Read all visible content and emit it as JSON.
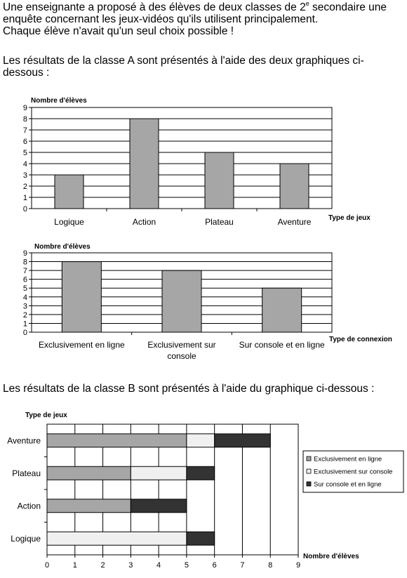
{
  "text": {
    "intro_part1": "Une enseignante a proposé à des élèves de deux classes de 2",
    "intro_sup": "e",
    "intro_part2": " secondaire une enquête concernant les jeux-vidéos qu'ils utilisent principalement.",
    "intro_line3": "Chaque élève n'avait qu'un seul choix possible !",
    "class_a_intro": "Les résultats de la classe A sont présentés à l'aide des deux graphiques ci-dessous :",
    "class_b_intro": "Les résultats de la classe B sont présentés à l'aide du graphique ci-dessous :"
  },
  "colors": {
    "bar_gray": "#a6a6a6",
    "series_online": "#a6a6a6",
    "series_console": "#f0f0f0",
    "series_both": "#333333"
  },
  "chart_data": [
    {
      "type": "bar",
      "ylabel": "Nombre d'élèves",
      "xlabel": "Type de jeux",
      "categories": [
        "Logique",
        "Action",
        "Plateau",
        "Aventure"
      ],
      "values": [
        3,
        8,
        5,
        4
      ],
      "ylim": [
        0,
        9
      ],
      "yticks": [
        "0",
        "1",
        "2",
        "3",
        "4",
        "5",
        "6",
        "7",
        "8",
        "9"
      ],
      "grid": true
    },
    {
      "type": "bar",
      "ylabel": "Nombre d'élèves",
      "xlabel": "Type de connexion",
      "categories": [
        "Exclusivement en ligne",
        "Exclusivement sur console",
        "Sur console et en ligne"
      ],
      "category_lines": [
        [
          "Exclusivement en ligne"
        ],
        [
          "Exclusivement sur",
          "console"
        ],
        [
          "Sur console et en ligne"
        ]
      ],
      "values": [
        8,
        7,
        5
      ],
      "ylim": [
        0,
        9
      ],
      "yticks": [
        "0",
        "1",
        "2",
        "3",
        "4",
        "5",
        "6",
        "7",
        "8",
        "9"
      ],
      "grid": true
    },
    {
      "type": "bar",
      "orientation": "horizontal",
      "stacked": true,
      "ylabel": "Type de jeux",
      "xlabel": "Nombre d'élèves",
      "categories": [
        "Aventure",
        "Plateau",
        "Action",
        "Logique"
      ],
      "series": [
        {
          "name": "Exclusivement en ligne",
          "values": [
            5,
            3,
            3,
            0
          ]
        },
        {
          "name": "Exclusivement sur console",
          "values": [
            1,
            2,
            0,
            5
          ]
        },
        {
          "name": "Sur console et en ligne",
          "values": [
            2,
            1,
            2,
            1
          ]
        }
      ],
      "xlim": [
        0,
        9
      ],
      "xticks": [
        "0",
        "1",
        "2",
        "3",
        "4",
        "5",
        "6",
        "7",
        "8",
        "9"
      ],
      "grid": true,
      "legend": "right"
    }
  ]
}
